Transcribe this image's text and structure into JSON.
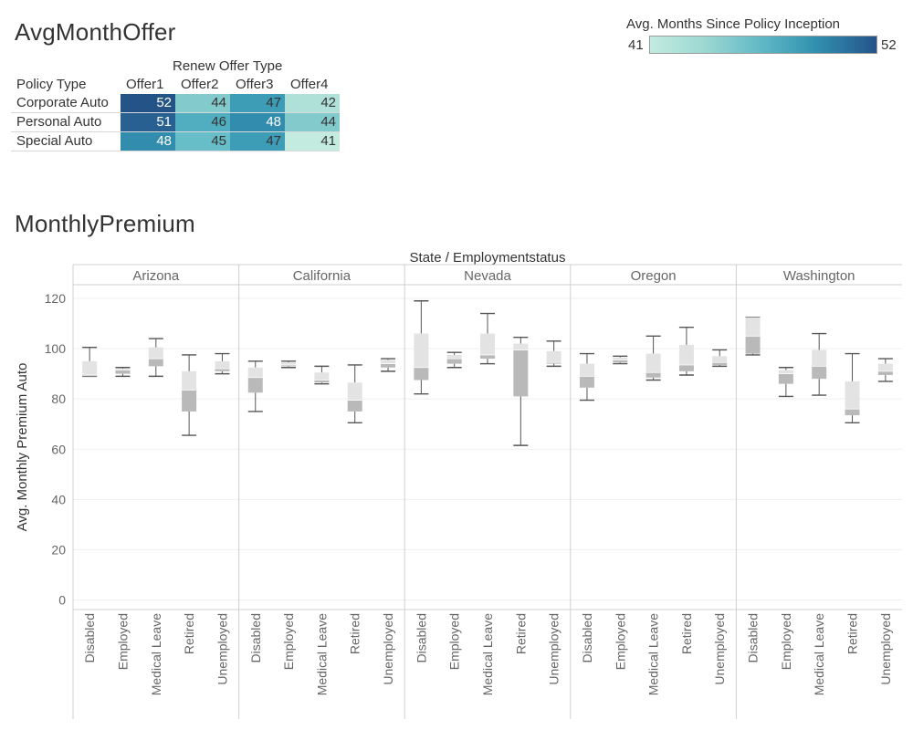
{
  "titles": {
    "heatmap": "AvgMonthOffer",
    "boxplot": "MonthlyPremium"
  },
  "legend": {
    "title": "Avg. Months Since Policy Inception",
    "min": "41",
    "max": "52"
  },
  "chart_data": [
    {
      "type": "heatmap",
      "title": "AvgMonthOffer",
      "column_header": "Renew Offer Type",
      "row_header": "Policy Type",
      "columns": [
        "Offer1",
        "Offer2",
        "Offer3",
        "Offer4"
      ],
      "rows": [
        "Corporate Auto",
        "Personal Auto",
        "Special Auto"
      ],
      "values": [
        [
          52,
          44,
          47,
          42
        ],
        [
          51,
          46,
          48,
          44
        ],
        [
          48,
          45,
          47,
          41
        ]
      ],
      "color_range": [
        41,
        52
      ],
      "colors": [
        "#c4ebdf",
        "#99d5d0",
        "#5cb8c6",
        "#3293b1",
        "#2a6f9c",
        "#245388"
      ]
    },
    {
      "type": "box",
      "title": "MonthlyPremium",
      "panel_title": "State / Employmentstatus",
      "ylabel": "Avg. Monthly Premium Auto",
      "ylim": [
        0,
        125
      ],
      "yticks": [
        0,
        20,
        40,
        60,
        80,
        100,
        120
      ],
      "grid": true,
      "categories": [
        "Disabled",
        "Employed",
        "Medical Leave",
        "Retired",
        "Unemployed"
      ],
      "colors": {
        "upper_box": "#e3e3e3",
        "lower_box": "#b9b9b9",
        "whisker": "#555555"
      },
      "states": [
        {
          "name": "Arizona",
          "boxes": [
            {
              "min": 89,
              "q1": 89,
              "median": 89.5,
              "q3": 95,
              "max": 100.5
            },
            {
              "min": 89,
              "q1": 90,
              "median": 91.5,
              "q3": 92,
              "max": 92.5
            },
            {
              "min": 89,
              "q1": 93,
              "median": 96,
              "q3": 100.5,
              "max": 104
            },
            {
              "min": 65.5,
              "q1": 75,
              "median": 83.5,
              "q3": 91,
              "max": 97.5
            },
            {
              "min": 90,
              "q1": 91,
              "median": 92,
              "q3": 95,
              "max": 98
            }
          ]
        },
        {
          "name": "California",
          "boxes": [
            {
              "min": 75,
              "q1": 82.5,
              "median": 88.5,
              "q3": 92.5,
              "max": 95
            },
            {
              "min": 92.5,
              "q1": 93,
              "median": 93.5,
              "q3": 94.5,
              "max": 95
            },
            {
              "min": 86,
              "q1": 86.5,
              "median": 87.5,
              "q3": 90.5,
              "max": 93
            },
            {
              "min": 70.5,
              "q1": 75,
              "median": 79.5,
              "q3": 86.5,
              "max": 93.5
            },
            {
              "min": 91,
              "q1": 92.5,
              "median": 94,
              "q3": 95.5,
              "max": 96
            }
          ]
        },
        {
          "name": "Nevada",
          "boxes": [
            {
              "min": 82,
              "q1": 87.5,
              "median": 92.5,
              "q3": 106,
              "max": 119
            },
            {
              "min": 92.5,
              "q1": 94,
              "median": 96,
              "q3": 97.5,
              "max": 98.5
            },
            {
              "min": 94,
              "q1": 96,
              "median": 97.5,
              "q3": 106,
              "max": 114
            },
            {
              "min": 61.5,
              "q1": 81,
              "median": 99.5,
              "q3": 102,
              "max": 104.5
            },
            {
              "min": 93,
              "q1": 94,
              "median": 94.5,
              "q3": 99,
              "max": 103
            }
          ]
        },
        {
          "name": "Oregon",
          "boxes": [
            {
              "min": 79.5,
              "q1": 84.5,
              "median": 89,
              "q3": 94,
              "max": 98
            },
            {
              "min": 94,
              "q1": 94.5,
              "median": 95.5,
              "q3": 96.5,
              "max": 97
            },
            {
              "min": 87.5,
              "q1": 88.5,
              "median": 90.5,
              "q3": 98,
              "max": 105
            },
            {
              "min": 89.5,
              "q1": 91,
              "median": 93.5,
              "q3": 101.5,
              "max": 108.5
            },
            {
              "min": 93,
              "q1": 93.5,
              "median": 94.5,
              "q3": 97,
              "max": 99.5
            }
          ]
        },
        {
          "name": "Washington",
          "boxes": [
            {
              "min": 97.5,
              "q1": 98,
              "median": 105,
              "q3": 112.5,
              "max": 112.5
            },
            {
              "min": 81,
              "q1": 86,
              "median": 90,
              "q3": 91.5,
              "max": 92.5
            },
            {
              "min": 81.5,
              "q1": 88,
              "median": 93,
              "q3": 99.5,
              "max": 106
            },
            {
              "min": 70.5,
              "q1": 73.5,
              "median": 76,
              "q3": 87,
              "max": 98
            },
            {
              "min": 87,
              "q1": 89.5,
              "median": 91,
              "q3": 94,
              "max": 96
            }
          ]
        }
      ]
    }
  ]
}
